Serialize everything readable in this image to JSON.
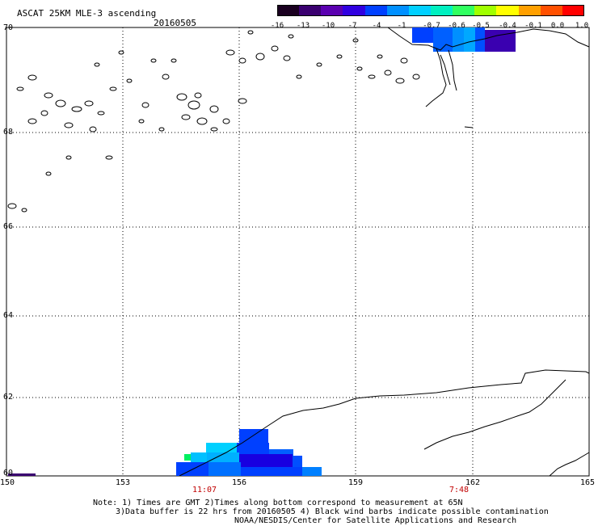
{
  "header": {
    "title": "ASCAT 25KM MLE-3 ascending",
    "date": "20160505"
  },
  "colorbar": {
    "labels": [
      "-16",
      "-13",
      "-10",
      "-7",
      "-4",
      "-1",
      "-0.7",
      "-0.6",
      "-0.5",
      "-0.4",
      "-0.1",
      "0.0",
      "1.0"
    ],
    "colors": [
      "#1a0020",
      "#3a0070",
      "#5a00b0",
      "#3000e0",
      "#0040ff",
      "#0090ff",
      "#00d0ff",
      "#00f0c0",
      "#30ff60",
      "#a0ff00",
      "#ffff00",
      "#ffa000",
      "#ff5000",
      "#ff0000"
    ]
  },
  "axes": {
    "lat_labels": [
      "70",
      "68",
      "66",
      "64",
      "62",
      "60"
    ],
    "lon_labels": [
      "150",
      "153",
      "156",
      "159",
      "162",
      "165"
    ]
  },
  "times": [
    {
      "label": "11:07",
      "lon": 155.3
    },
    {
      "label": "7:48",
      "lon": 161.5
    }
  ],
  "notes": {
    "line1": "Note: 1) Times are GMT 2)Times along bottom correspond to measurement at 65N",
    "line2": "3)Data buffer is 22 hrs from 20160505 4) Black wind barbs indicate possible contamination",
    "line3": "NOAA/NESDIS/Center for Satellite Applications and Research"
  },
  "colors": {
    "blue": "#0040ff",
    "medium_blue": "#0090ff",
    "light_cyan": "#00d0ff",
    "dark_purple": "#3a00b0",
    "deep_blue": "#1800e0"
  }
}
